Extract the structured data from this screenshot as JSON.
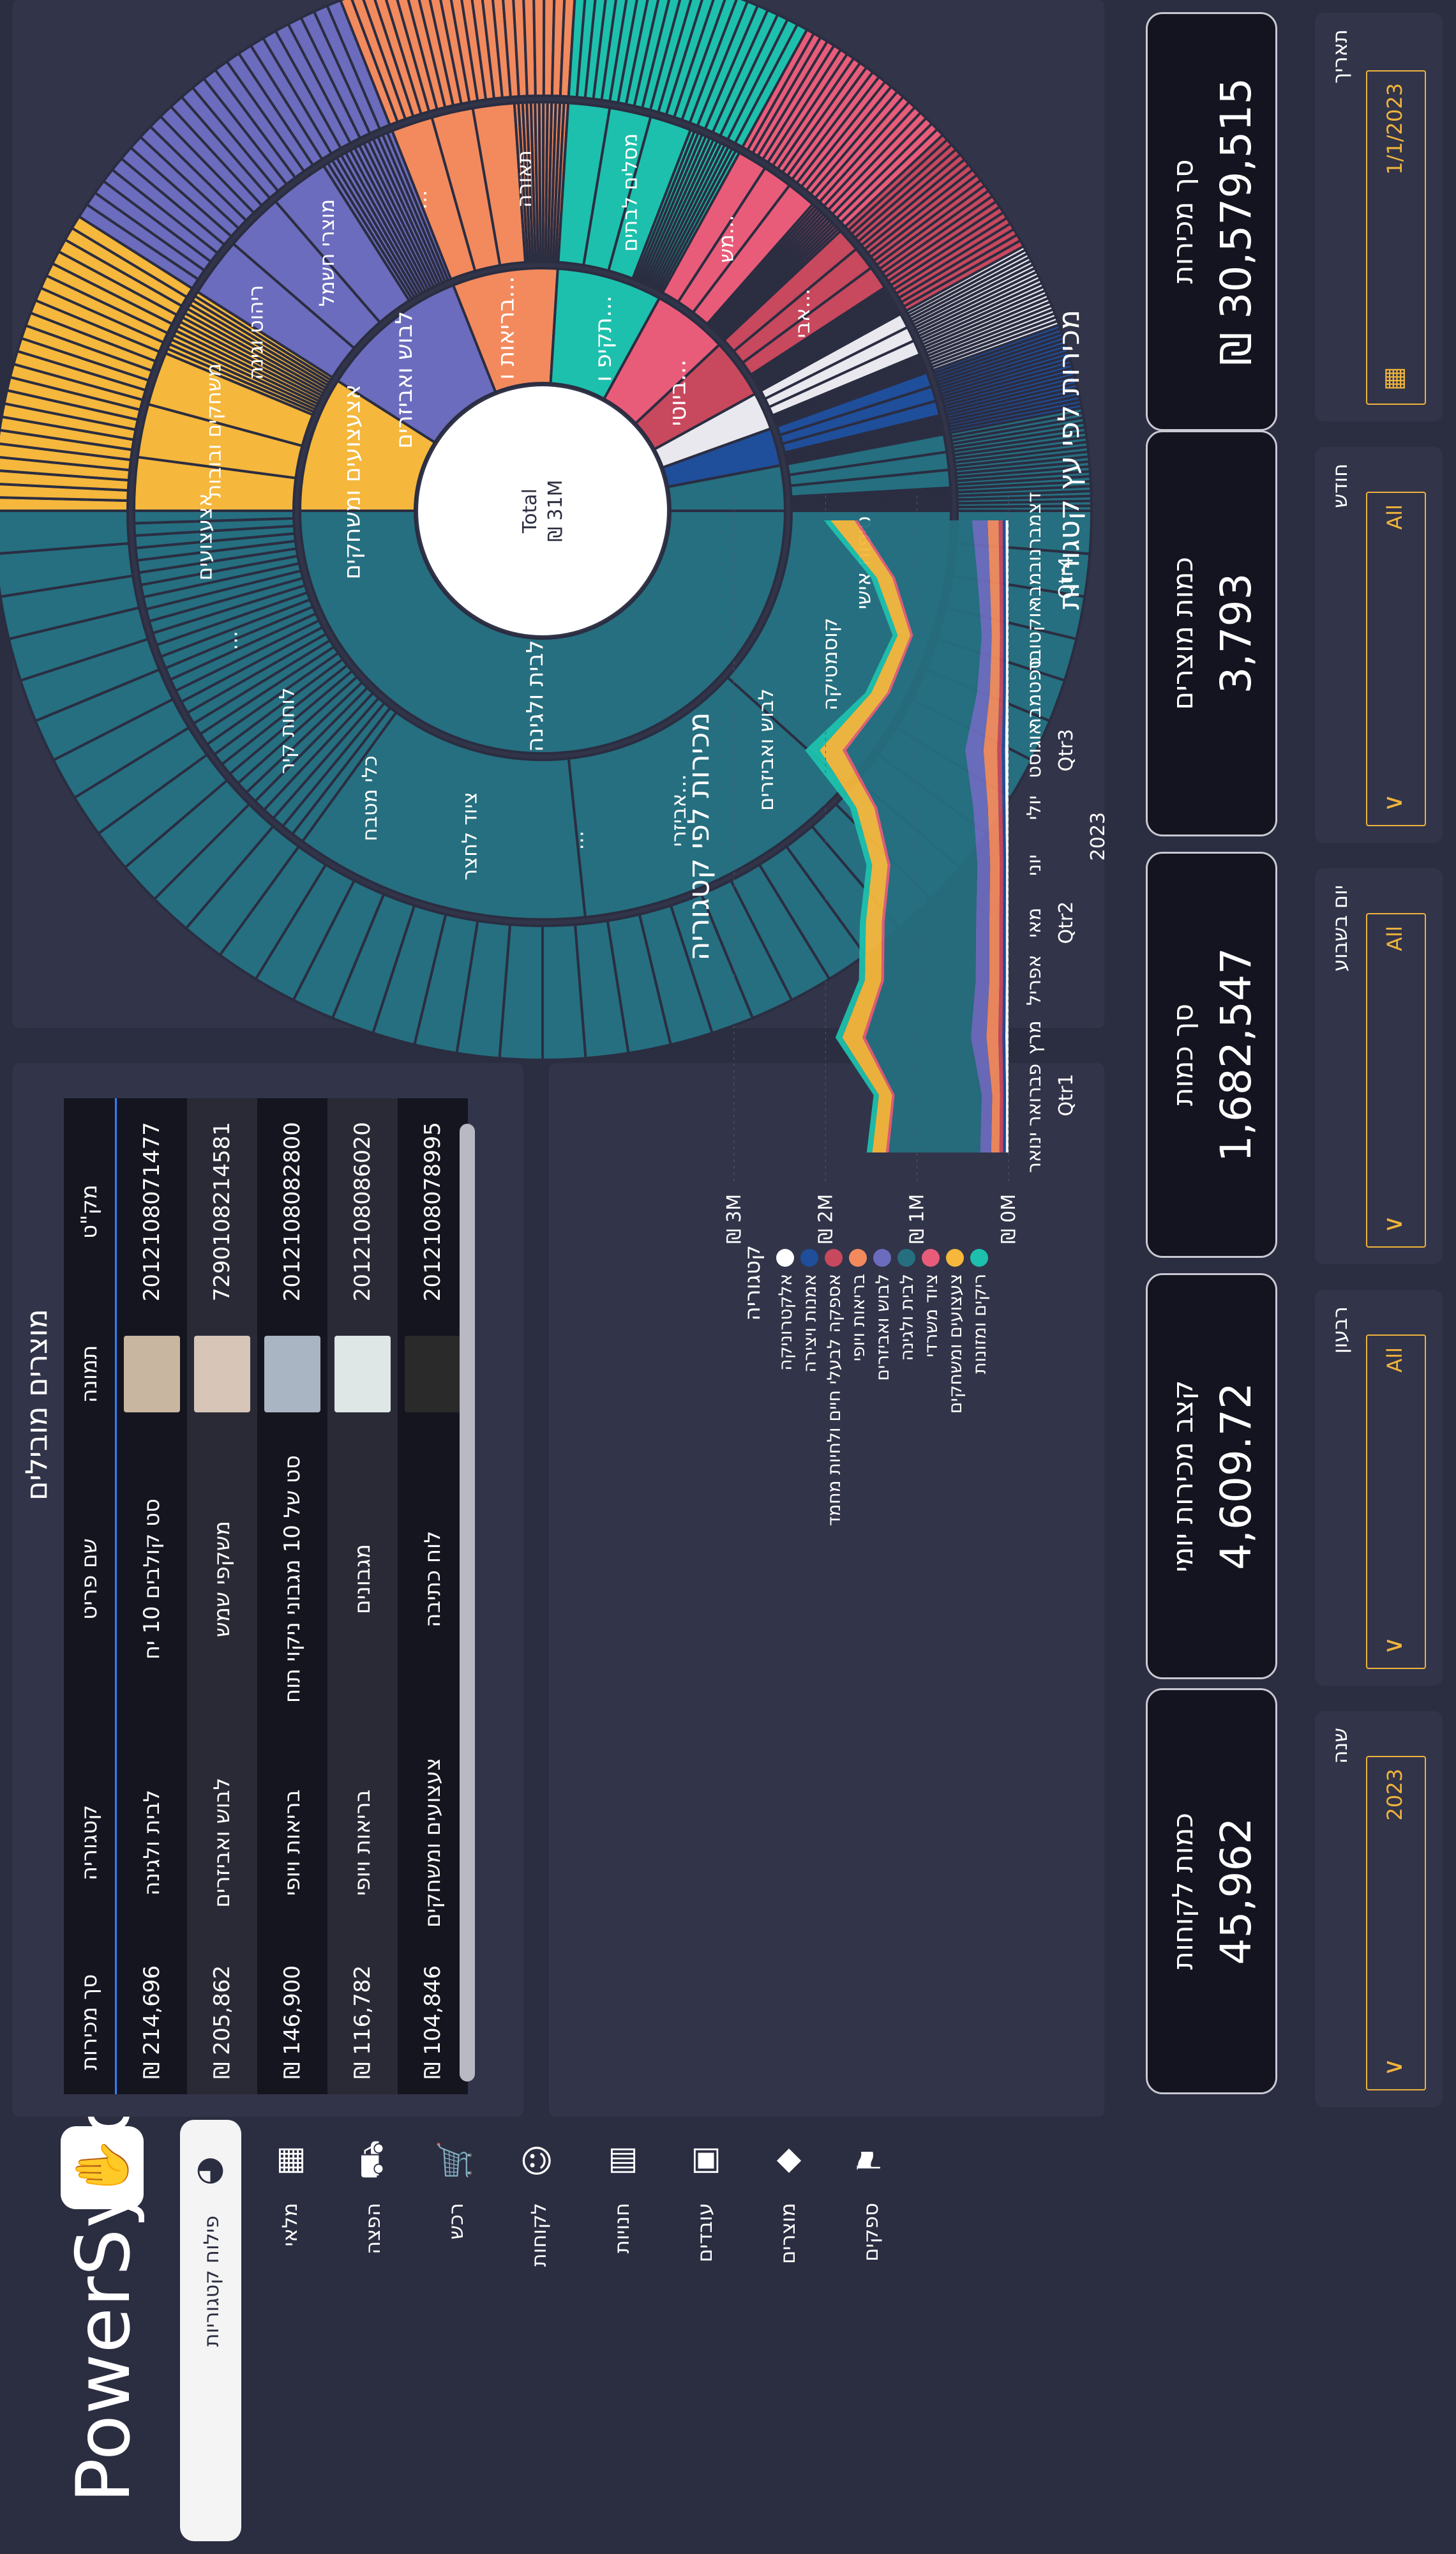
{
  "app": {
    "brand": "PowerSync",
    "brand_icon": "hand-icon"
  },
  "nav": {
    "active": {
      "label": "פילוח קטגוריות",
      "icon": "pie-chart-icon"
    },
    "items": [
      {
        "label": "מלאי",
        "icon": "warehouse-icon"
      },
      {
        "label": "הפצה",
        "icon": "truck-icon"
      },
      {
        "label": "רכש",
        "icon": "cart-icon"
      },
      {
        "label": "לקוחות",
        "icon": "customers-icon"
      },
      {
        "label": "חנויות",
        "icon": "store-icon"
      },
      {
        "label": "עובדים",
        "icon": "badge-icon"
      },
      {
        "label": "מוצרים",
        "icon": "tag-icon"
      },
      {
        "label": "ספקים",
        "icon": "supplier-icon"
      }
    ]
  },
  "filters": [
    {
      "label": "תאריך",
      "value": "1/1/2023",
      "icon": "calendar-icon"
    },
    {
      "label": "חודש",
      "value": "All"
    },
    {
      "label": "יום בשבוע",
      "value": "All"
    },
    {
      "label": "רבעון",
      "value": "All"
    },
    {
      "label": "שנה",
      "value": "2023"
    }
  ],
  "kpis": [
    {
      "title": "סך מכירות",
      "value": "₪ 30,579,515"
    },
    {
      "title": "כמות מוצרים",
      "value": "3,793"
    },
    {
      "title": "סך כמות",
      "value": "1,682,547"
    },
    {
      "title": "קצב מכירות יומי",
      "value": "4,609.72"
    },
    {
      "title": "כמות לקוחות",
      "value": "45,962"
    }
  ],
  "sunburst": {
    "title": "מכירות לפי עץ קטגוריות",
    "center_lines": [
      "Total",
      "₪ 31M"
    ],
    "inner_labels": [
      "לבית ולגינה",
      "אצעצועים ומשחקים",
      "לבוש ואביזרים",
      "בריאות ו...",
      "תקיפ ו...",
      "ביוטי..."
    ],
    "outer_labels": [
      "טיפוח אישי",
      "קוסמטיקה",
      "לבוש ואביזרים",
      "אביזרי...",
      "...",
      "ציוד לחצר",
      "כלי מטבח",
      "לוחות קיר",
      "...",
      "אצעצועים",
      "משחקים ובובות",
      "ריהוט וגינה",
      "מוצרי חשמל",
      "...",
      "תאורה",
      "מסלים לבתים",
      "מש...",
      "אבי..."
    ]
  },
  "stream": {
    "title": "מכירות לפי קטגוריה",
    "y_ticks": [
      "₪ 3M",
      "₪ 2M",
      "₪ 1M",
      "₪ 0M"
    ],
    "months": [
      "ינואר",
      "פברואר",
      "מרץ",
      "אפריל",
      "מאי",
      "יוני",
      "יולי",
      "אוגוסט",
      "ספטמבר",
      "אוקטובר",
      "נובמבר",
      "דצמבר"
    ],
    "quarters": [
      "Qtr1",
      "Qtr2",
      "Qtr3",
      "Qtr4"
    ],
    "year": "2023",
    "legend_title": "קטגוריה"
  },
  "chart_data": {
    "type": "area",
    "title": "מכירות לפי קטגוריה",
    "categories": [
      "ינואר",
      "פברואר",
      "מרץ",
      "אפריל",
      "מאי",
      "יוני",
      "יולי",
      "אוגוסט",
      "ספטמבר",
      "אוקטובר",
      "נובמבר",
      "דצמבר"
    ],
    "ylim": [
      0,
      3000000
    ],
    "stacked": true,
    "legend": "right",
    "series": [
      {
        "name": "אלקטרוניקה",
        "color": "#ffffff",
        "values": [
          30000,
          28000,
          35000,
          30000,
          30000,
          28000,
          34000,
          38000,
          30000,
          28000,
          30000,
          32000
        ]
      },
      {
        "name": "אמנות ויצירה",
        "color": "#1f4e9b",
        "values": [
          30000,
          28000,
          32000,
          30000,
          30000,
          28000,
          32000,
          36000,
          30000,
          28000,
          30000,
          32000
        ]
      },
      {
        "name": "אספקה לבעלי חיים ולחיות מחמד",
        "color": "#c8485e",
        "values": [
          40000,
          38000,
          45000,
          40000,
          40000,
          40000,
          45000,
          50000,
          40000,
          38000,
          40000,
          45000
        ]
      },
      {
        "name": "בריאות ויופי",
        "color": "#f28a5e",
        "values": [
          90000,
          85000,
          130000,
          110000,
          110000,
          105000,
          115000,
          150000,
          105000,
          90000,
          105000,
          120000
        ]
      },
      {
        "name": "לבוש ואביזרים",
        "color": "#6b6cbd",
        "values": [
          120000,
          115000,
          170000,
          150000,
          145000,
          140000,
          160000,
          200000,
          140000,
          110000,
          135000,
          170000
        ]
      },
      {
        "name": "לבית ולגינה",
        "color": "#256f80",
        "values": [
          1000000,
          950000,
          1150000,
          1000000,
          1000000,
          950000,
          1050000,
          1300000,
          950000,
          750000,
          900000,
          1250000
        ]
      },
      {
        "name": "ציוד משרדי",
        "color": "#e95c79",
        "values": [
          30000,
          28000,
          35000,
          30000,
          30000,
          30000,
          32000,
          40000,
          30000,
          28000,
          30000,
          35000
        ]
      },
      {
        "name": "צעצועים ומשחקים",
        "color": "#f5b73c",
        "values": [
          150000,
          145000,
          220000,
          180000,
          175000,
          170000,
          195000,
          250000,
          175000,
          140000,
          170000,
          260000
        ]
      },
      {
        "name": "ריקים ומזונות",
        "color": "#1dc0ac",
        "values": [
          60000,
          58000,
          75000,
          65000,
          65000,
          62000,
          70000,
          160000,
          65000,
          55000,
          62000,
          75000
        ]
      }
    ]
  },
  "table": {
    "title": "מוצרים מובילים",
    "columns": [
      "מק\"ט",
      "תמונה",
      "שם פריט",
      "קטגוריה",
      "סך מכירות"
    ],
    "rows": [
      {
        "sku": "2012108071477",
        "name": "סט קולבים 10 יח",
        "category": "לבית ולגינה",
        "sales": "₪ 214,696"
      },
      {
        "sku": "7290108214581",
        "name": "משקפי שמש",
        "category": "לבוש ואביזרים",
        "sales": "₪ 205,862"
      },
      {
        "sku": "2012108082800",
        "name": "סט של 10 מגבוני ניקוי תוח",
        "category": "בריאות ויופי",
        "sales": "₪ 146,900"
      },
      {
        "sku": "2012108086020",
        "name": "מגבונים",
        "category": "בריאות ויופי",
        "sales": "₪ 116,782"
      },
      {
        "sku": "2012108078995",
        "name": "לוח כתיבה",
        "category": "צעצועים ומשחקים",
        "sales": "₪ 104,846"
      }
    ]
  }
}
